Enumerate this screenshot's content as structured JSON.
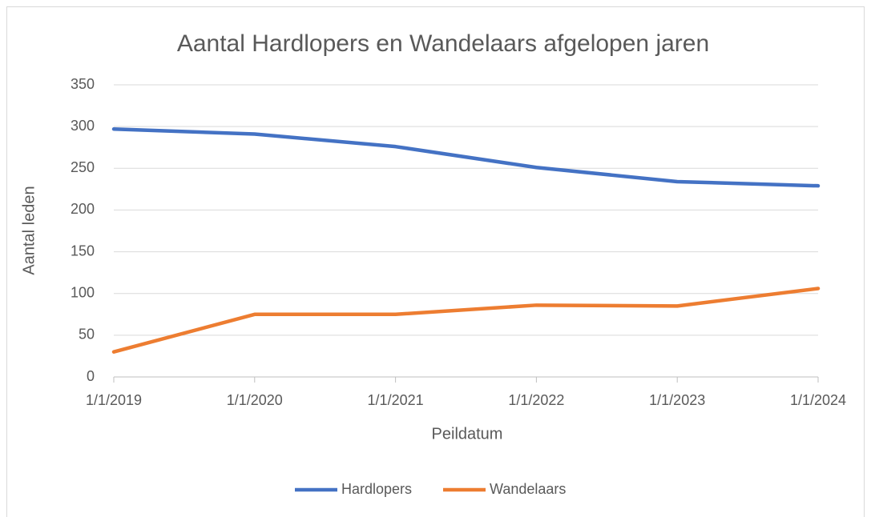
{
  "chart_data": {
    "type": "line",
    "title": "Aantal Hardlopers en Wandelaars afgelopen jaren",
    "x_label": "Peildatum",
    "y_label": "Aantal leden",
    "categories": [
      "1/1/2019",
      "1/1/2020",
      "1/1/2021",
      "1/1/2022",
      "1/1/2023",
      "1/1/2024"
    ],
    "series": [
      {
        "name": "Hardlopers",
        "color": "#4472c4",
        "values": [
          297,
          291,
          276,
          251,
          234,
          229
        ]
      },
      {
        "name": "Wandelaars",
        "color": "#ed7d31",
        "values": [
          30,
          75,
          75,
          86,
          85,
          106
        ]
      }
    ],
    "ylim": [
      0,
      350
    ],
    "yticks": [
      0,
      50,
      100,
      150,
      200,
      250,
      300,
      350
    ],
    "grid": true,
    "legend": "bottom"
  }
}
